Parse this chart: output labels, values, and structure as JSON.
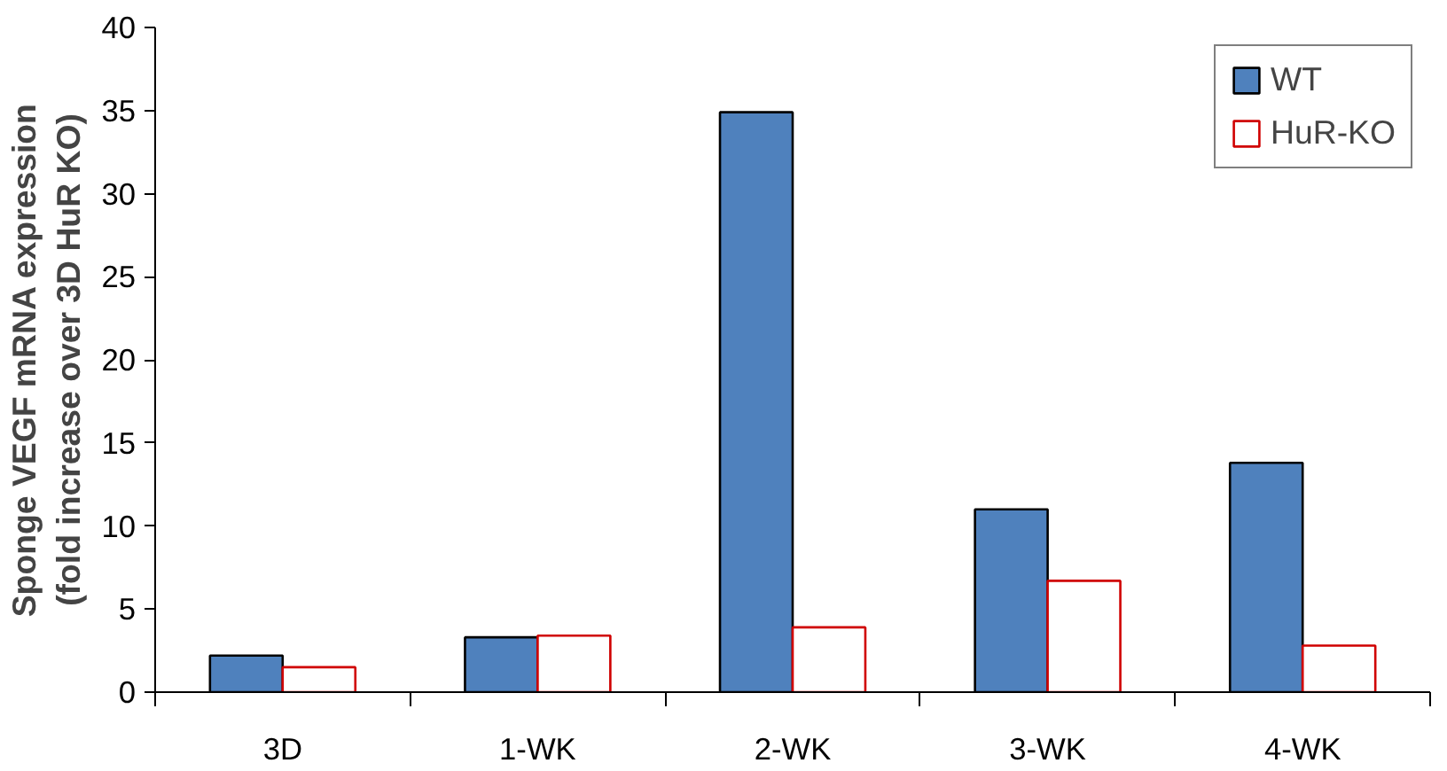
{
  "chart_data": {
    "type": "bar",
    "ylabel": "Sponge VEGF mRNA expression\n(fold increase over 3D HuR KO)",
    "categories": [
      "3D",
      "1-WK",
      "2-WK",
      "3-WK",
      "4-WK"
    ],
    "series": [
      {
        "name": "WT",
        "color": "#4f81bd",
        "values": [
          2.2,
          3.3,
          34.9,
          11.0,
          13.8
        ]
      },
      {
        "name": "HuR-KO",
        "color": "#ffffff",
        "values": [
          1.5,
          3.4,
          3.9,
          6.7,
          2.8
        ]
      }
    ],
    "ylim": [
      0,
      40
    ],
    "yticks": [
      0,
      5,
      10,
      15,
      20,
      25,
      30,
      35,
      40
    ],
    "grid": false,
    "legend": "top right"
  }
}
